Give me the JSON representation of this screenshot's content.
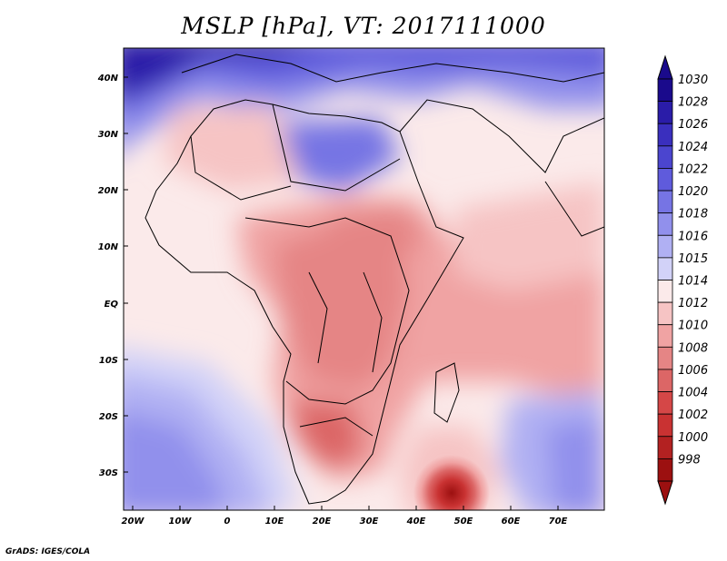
{
  "title": "MSLP [hPa], VT: 2017111000",
  "credit": "GrADS: IGES/COLA",
  "lon_ticks": [
    "20W",
    "10W",
    "0",
    "10E",
    "20E",
    "30E",
    "40E",
    "50E",
    "60E",
    "70E"
  ],
  "lat_ticks": [
    "40N",
    "30N",
    "20N",
    "10N",
    "EQ",
    "10S",
    "20S",
    "30S"
  ],
  "colorbar": {
    "levels": [
      "1030",
      "1028",
      "1026",
      "1024",
      "1022",
      "1020",
      "1018",
      "1016",
      "1015",
      "1014",
      "1012",
      "1010",
      "1008",
      "1006",
      "1004",
      "1002",
      "1000",
      "998"
    ],
    "colors": [
      "#1a0a8c",
      "#2a1ca8",
      "#3a2fbe",
      "#4b45cf",
      "#5f5bdc",
      "#7674e4",
      "#9190ec",
      "#b0b0f3",
      "#d2d2f8",
      "#fbeaea",
      "#f6c4c4",
      "#f0a3a3",
      "#e58585",
      "#dc6666",
      "#d54747",
      "#c93232",
      "#b32121",
      "#9c1010"
    ]
  },
  "chart_data": {
    "type": "heatmap",
    "title": "MSLP [hPa], VT: 2017111000",
    "variable": "Mean sea level pressure",
    "units": "hPa",
    "valid_time": "2017111000",
    "lon_range": [
      -22,
      80
    ],
    "lat_range": [
      -37,
      45
    ],
    "x_ticks": [
      "20W",
      "10W",
      "0",
      "10E",
      "20E",
      "30E",
      "40E",
      "50E",
      "60E",
      "70E"
    ],
    "y_ticks": [
      "40N",
      "30N",
      "20N",
      "10N",
      "EQ",
      "10S",
      "20S",
      "30S"
    ],
    "contour_levels": [
      998,
      1000,
      1002,
      1004,
      1006,
      1008,
      1010,
      1012,
      1014,
      1015,
      1016,
      1018,
      1020,
      1022,
      1024,
      1026,
      1028,
      1030
    ],
    "features": [
      {
        "name": "high pressure NW (Atlantic/Iberia)",
        "approx_lon": -18,
        "approx_lat": 42,
        "value_hPa": 1030
      },
      {
        "name": "high pressure Sahara",
        "approx_lon": 15,
        "approx_lat": 28,
        "value_hPa": 1020
      },
      {
        "name": "low pressure south of Madagascar",
        "approx_lon": 47,
        "approx_lat": -35,
        "value_hPa": 998
      },
      {
        "name": "low pressure southern Africa",
        "approx_lon": 22,
        "approx_lat": -22,
        "value_hPa": 1006
      }
    ]
  }
}
